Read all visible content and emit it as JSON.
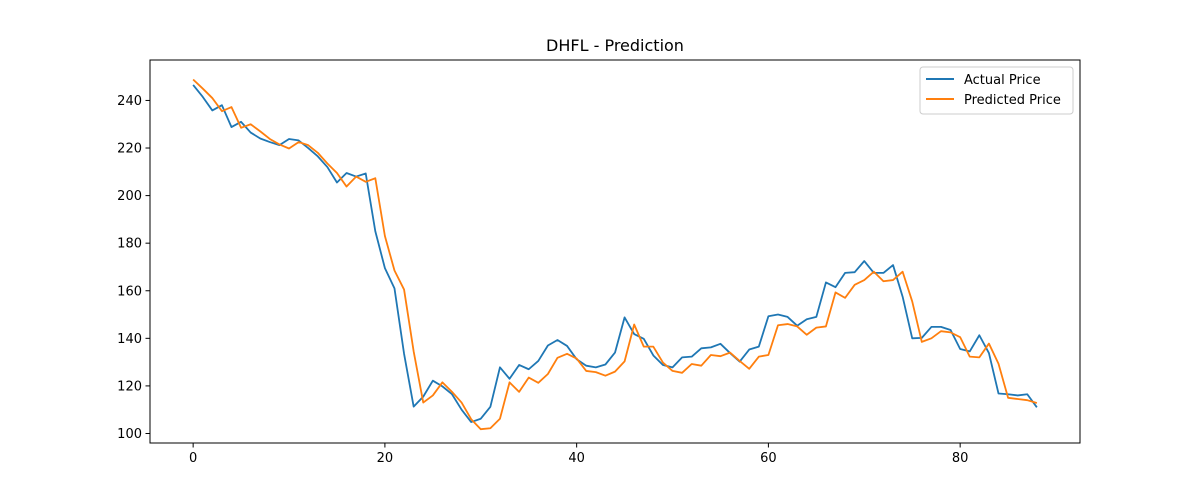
{
  "chart_data": {
    "type": "line",
    "title": "DHFL - Prediction",
    "xlabel": "",
    "ylabel": "",
    "xlim": [
      -4.5,
      92.5
    ],
    "ylim": [
      96,
      257
    ],
    "x_ticks": [
      0,
      20,
      40,
      60,
      80
    ],
    "y_ticks": [
      100,
      120,
      140,
      160,
      180,
      200,
      220,
      240
    ],
    "grid": false,
    "legend_position": "top-right",
    "series": [
      {
        "name": "Actual Price",
        "color": "#1f77b4",
        "values": [
          246.5,
          241.5,
          235.8,
          238.0,
          228.8,
          231.0,
          226.5,
          224.0,
          222.5,
          221.2,
          223.8,
          223.2,
          220.0,
          216.5,
          212.0,
          205.5,
          209.5,
          208.0,
          209.3,
          185.0,
          169.5,
          161.0,
          133.5,
          111.3,
          115.5,
          122.2,
          119.8,
          116.5,
          110.0,
          104.8,
          106.2,
          111.2,
          127.8,
          123.0,
          128.8,
          127.0,
          130.5,
          137.0,
          139.3,
          136.8,
          131.2,
          128.5,
          127.8,
          129.0,
          134.0,
          148.8,
          141.8,
          139.8,
          132.8,
          128.8,
          127.8,
          132.0,
          132.3,
          135.8,
          136.2,
          137.7,
          133.8,
          130.2,
          135.3,
          136.5,
          149.3,
          150.0,
          149.0,
          145.3,
          148.0,
          149.0,
          163.5,
          161.5,
          167.5,
          167.8,
          172.5,
          167.5,
          167.5,
          170.8,
          157.5,
          140.0,
          140.2,
          144.8,
          144.8,
          143.5,
          135.5,
          134.5,
          141.3,
          133.8,
          116.8,
          116.5,
          116.0,
          116.5,
          111.0
        ]
      },
      {
        "name": "Predicted Price",
        "color": "#ff7f0e",
        "values": [
          248.8,
          245.0,
          241.0,
          235.5,
          237.2,
          228.5,
          230.0,
          227.0,
          223.8,
          221.5,
          219.8,
          222.5,
          221.2,
          218.0,
          213.5,
          209.5,
          203.8,
          208.0,
          205.8,
          207.3,
          183.0,
          168.5,
          160.5,
          134.5,
          113.0,
          116.0,
          121.5,
          117.5,
          113.0,
          106.0,
          101.8,
          102.2,
          106.2,
          121.5,
          117.5,
          123.5,
          121.3,
          125.0,
          131.8,
          133.5,
          131.5,
          126.3,
          125.8,
          124.3,
          126.0,
          130.3,
          145.8,
          136.5,
          136.5,
          129.8,
          126.3,
          125.5,
          129.2,
          128.5,
          133.0,
          132.5,
          134.0,
          130.5,
          127.2,
          132.3,
          133.0,
          145.5,
          146.0,
          145.0,
          141.5,
          144.5,
          145.0,
          159.3,
          157.0,
          162.5,
          164.5,
          168.0,
          164.0,
          164.5,
          168.0,
          155.5,
          138.5,
          140.0,
          143.0,
          142.5,
          140.5,
          132.3,
          132.0,
          137.8,
          129.3,
          115.0,
          114.5,
          114.0,
          112.8
        ]
      }
    ]
  }
}
